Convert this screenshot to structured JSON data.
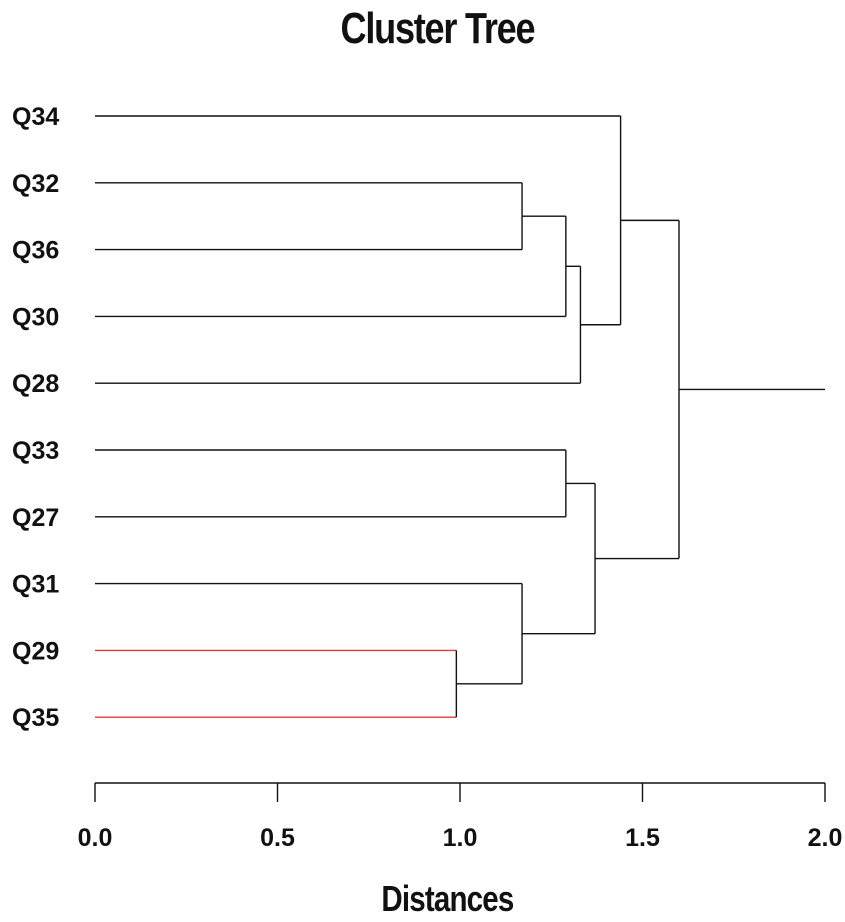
{
  "chart_data": {
    "type": "dendrogram",
    "title": "Cluster Tree",
    "xlabel": "Distances",
    "xlim": [
      0,
      2.0
    ],
    "x_ticks": [
      "0.0",
      "0.5",
      "1.0",
      "1.5",
      "2.0"
    ],
    "leaves": [
      "Q34",
      "Q32",
      "Q36",
      "Q30",
      "Q28",
      "Q33",
      "Q27",
      "Q31",
      "Q29",
      "Q35"
    ],
    "highlight_color": "#e53935",
    "line_color": "#111111",
    "root_line_end": 2.0,
    "merges": [
      {
        "id": "m1",
        "children": [
          "Q29",
          "Q35"
        ],
        "height": 0.99,
        "highlight": true
      },
      {
        "id": "m2",
        "children": [
          "Q31",
          "m1"
        ],
        "height": 1.17
      },
      {
        "id": "m3",
        "children": [
          "Q32",
          "Q36"
        ],
        "height": 1.17
      },
      {
        "id": "m4",
        "children": [
          "Q33",
          "Q27"
        ],
        "height": 1.29
      },
      {
        "id": "m5",
        "children": [
          "m3",
          "Q30"
        ],
        "height": 1.29
      },
      {
        "id": "m6",
        "children": [
          "m5",
          "Q28"
        ],
        "height": 1.33
      },
      {
        "id": "m7",
        "children": [
          "m4",
          "m2"
        ],
        "height": 1.37
      },
      {
        "id": "m8",
        "children": [
          "Q34",
          "m6"
        ],
        "height": 1.44
      },
      {
        "id": "m9",
        "children": [
          "m8",
          "m7"
        ],
        "height": 1.6
      }
    ]
  }
}
